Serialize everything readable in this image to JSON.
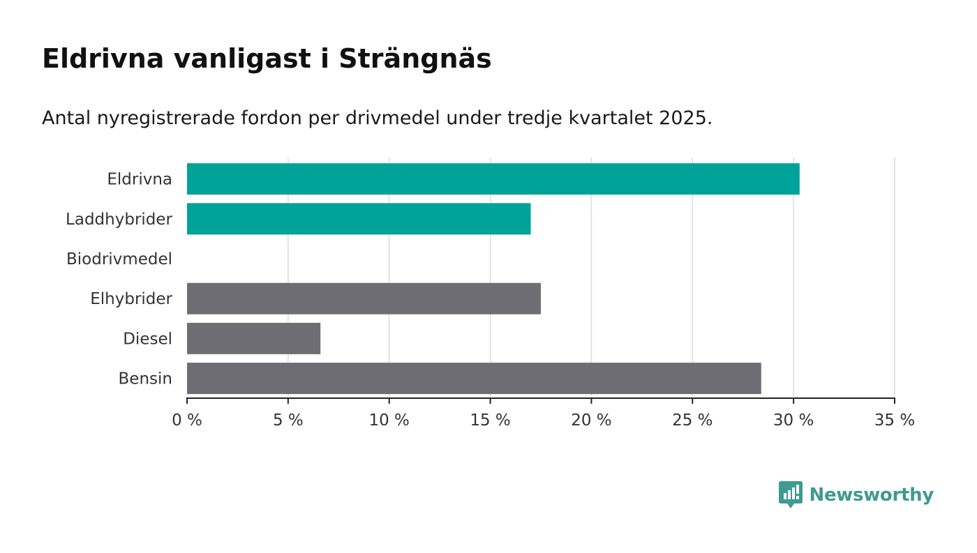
{
  "header": {
    "title": "Eldrivna vanligast i Strängnäs",
    "subtitle": "Antal nyregistrerade fordon per drivmedel under tredje kvartalet 2025."
  },
  "brand": {
    "name": "Newsworthy",
    "icon": "bar-chart-speech-bubble-icon",
    "color": "#3f9a90"
  },
  "chart_data": {
    "type": "bar",
    "orientation": "horizontal",
    "categories": [
      "Eldrivna",
      "Laddhybrider",
      "Biodrivmedel",
      "Elhybrider",
      "Diesel",
      "Bensin"
    ],
    "values": [
      30.3,
      17.0,
      0,
      17.5,
      6.6,
      28.4
    ],
    "colors": [
      "#00a39a",
      "#00a39a",
      "#00a39a",
      "#6e6d73",
      "#6e6d73",
      "#6e6d73"
    ],
    "xlim": [
      0,
      35
    ],
    "ticks": [
      0,
      5,
      10,
      15,
      20,
      25,
      30,
      35
    ],
    "tick_labels": [
      "0 %",
      "5 %",
      "10 %",
      "15 %",
      "20 %",
      "25 %",
      "30 %",
      "35 %"
    ],
    "grid": true,
    "xlabel": "",
    "ylabel": ""
  }
}
